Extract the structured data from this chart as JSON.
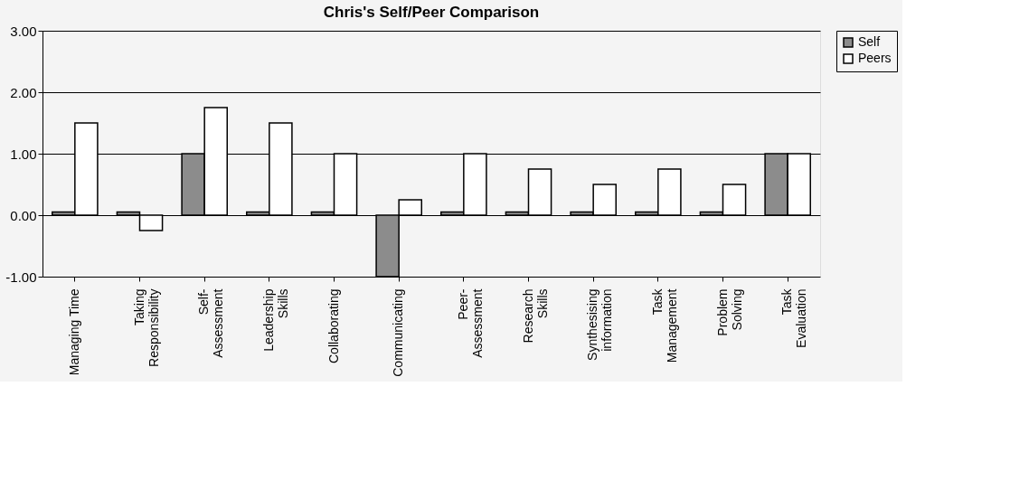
{
  "chart_data": {
    "type": "bar",
    "title": "Chris's   Self/Peer   Comparison",
    "categories": [
      "Managing Time",
      "Taking Responsibility",
      "Self-Assessment",
      "Leadership Skills",
      "Collaborating",
      "Communicating",
      "Peer-Assessment",
      "Research Skills",
      "Synthesising information",
      "Task Management",
      "Problem Solving",
      "Task Evaluation"
    ],
    "series": [
      {
        "name": "Self",
        "color": "#8c8c8c",
        "values": [
          0.05,
          0.05,
          1.0,
          0.05,
          0.05,
          -1.0,
          0.05,
          0.05,
          0.05,
          0.05,
          0.05,
          1.0
        ]
      },
      {
        "name": "Peers",
        "color": "#ffffff",
        "values": [
          1.5,
          -0.25,
          1.75,
          1.5,
          1.0,
          0.25,
          1.0,
          0.75,
          0.5,
          0.75,
          0.5,
          1.0
        ]
      }
    ],
    "ylim": [
      -1,
      3
    ],
    "yticks": [
      {
        "value": -1,
        "label": "-1.00"
      },
      {
        "value": 0,
        "label": "0.00"
      },
      {
        "value": 1,
        "label": "1.00"
      },
      {
        "value": 2,
        "label": "2.00"
      },
      {
        "value": 3,
        "label": "3.00"
      }
    ],
    "grid": "y",
    "legend": "right"
  }
}
